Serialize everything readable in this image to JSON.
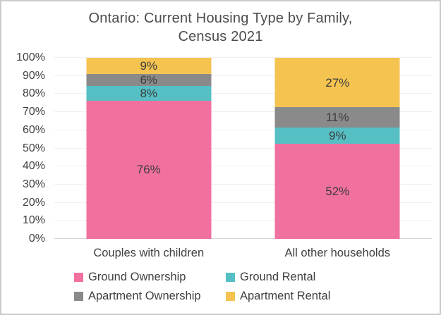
{
  "title": {
    "lines": [
      "Ontario: Current Housing Type by Family,",
      "Census 2021"
    ]
  },
  "chart_data": {
    "type": "bar",
    "stacked": true,
    "percent": true,
    "title": "Ontario: Current Housing Type by Family, Census 2021",
    "categories": [
      "Couples with children",
      "All other households"
    ],
    "series": [
      {
        "name": "Ground Ownership",
        "color": "#f0709f",
        "values": [
          76,
          52
        ],
        "labels": [
          "76%",
          "52%"
        ]
      },
      {
        "name": "Ground Rental",
        "color": "#55bfc4",
        "values": [
          8,
          9
        ],
        "labels": [
          "8%",
          "9%"
        ]
      },
      {
        "name": "Apartment Ownership",
        "color": "#8a8a8a",
        "values": [
          6,
          11
        ],
        "labels": [
          "6%",
          "11%"
        ]
      },
      {
        "name": "Apartment Rental",
        "color": "#f5c350",
        "values": [
          9,
          27
        ],
        "labels": [
          "9%",
          "27%"
        ]
      }
    ],
    "y_axis": {
      "range": [
        0,
        100
      ],
      "grid": true,
      "ticks": [
        {
          "value": 0,
          "label": "0%"
        },
        {
          "value": 10,
          "label": "10%"
        },
        {
          "value": 20,
          "label": "20%"
        },
        {
          "value": 30,
          "label": "30%"
        },
        {
          "value": 40,
          "label": "40%"
        },
        {
          "value": 50,
          "label": "50%"
        },
        {
          "value": 60,
          "label": "60%"
        },
        {
          "value": 70,
          "label": "70%"
        },
        {
          "value": 80,
          "label": "80%"
        },
        {
          "value": 90,
          "label": "90%"
        },
        {
          "value": 100,
          "label": "100%"
        }
      ]
    },
    "legend": {
      "position": "bottom",
      "columns": 2
    }
  }
}
